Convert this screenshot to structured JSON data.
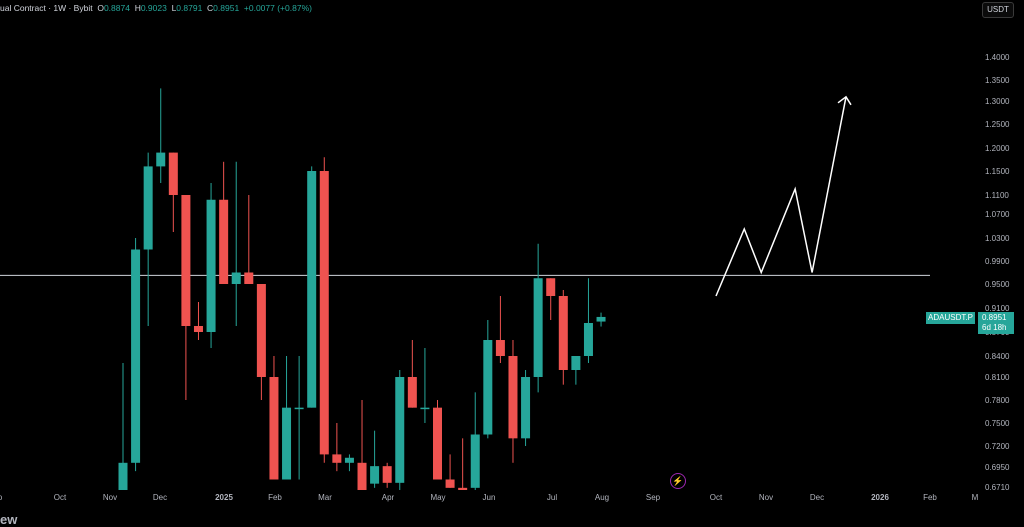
{
  "legend": {
    "title": "ual Contract · 1W · Bybit",
    "o_label": "O",
    "o": "0.8874",
    "h_label": "H",
    "h": "0.9023",
    "l_label": "L",
    "l": "0.8791",
    "c_label": "C",
    "c": "0.8951",
    "change": "+0.0077 (+0.87%)"
  },
  "currency_button": "USDT",
  "price_label": {
    "symbol": "ADAUSDT.P",
    "price": "0.8951",
    "countdown": "6d 18h"
  },
  "watermark": "ew",
  "colors": {
    "up": "#26a69a",
    "down": "#ef5350",
    "background": "#000000",
    "axis_text": "#b2b5be",
    "annotation": "#ffffff"
  },
  "chart_data": {
    "type": "candlestick",
    "y_ticks": [
      "1.4000",
      "1.3500",
      "1.3000",
      "1.2500",
      "1.2000",
      "1.1500",
      "1.1100",
      "1.0700",
      "1.0300",
      "0.9900",
      "0.9500",
      "0.9100",
      "0.8700",
      "0.8400",
      "0.8100",
      "0.7800",
      "0.7500",
      "0.7200",
      "0.6950",
      "0.6710"
    ],
    "x_ticks": [
      "p",
      "Oct",
      "Nov",
      "Dec",
      "2025",
      "Feb",
      "Mar",
      "Apr",
      "May",
      "Jun",
      "Jul",
      "Aug",
      "Sep",
      "Oct",
      "Nov",
      "Dec",
      "2026",
      "Feb",
      "M"
    ],
    "horizontal_line": 0.965,
    "candles": [
      {
        "o": 0.66,
        "h": 0.83,
        "l": 0.66,
        "c": 0.7
      },
      {
        "o": 0.7,
        "h": 1.03,
        "l": 0.69,
        "c": 1.01
      },
      {
        "o": 1.01,
        "h": 1.19,
        "l": 0.88,
        "c": 1.16
      },
      {
        "o": 1.16,
        "h": 1.33,
        "l": 1.13,
        "c": 1.19
      },
      {
        "o": 1.19,
        "h": 1.19,
        "l": 1.04,
        "c": 1.11
      },
      {
        "o": 1.11,
        "h": 1.11,
        "l": 0.78,
        "c": 0.88
      },
      {
        "o": 0.88,
        "h": 0.92,
        "l": 0.86,
        "c": 0.87
      },
      {
        "o": 0.87,
        "h": 1.13,
        "l": 0.85,
        "c": 1.1
      },
      {
        "o": 1.1,
        "h": 1.17,
        "l": 0.95,
        "c": 0.95
      },
      {
        "o": 0.95,
        "h": 1.17,
        "l": 0.88,
        "c": 0.97
      },
      {
        "o": 0.97,
        "h": 1.11,
        "l": 0.95,
        "c": 0.95
      },
      {
        "o": 0.95,
        "h": 0.95,
        "l": 0.78,
        "c": 0.81
      },
      {
        "o": 0.81,
        "h": 0.84,
        "l": 0.68,
        "c": 0.68
      },
      {
        "o": 0.68,
        "h": 0.84,
        "l": 0.68,
        "c": 0.77
      },
      {
        "o": 0.77,
        "h": 0.84,
        "l": 0.68,
        "c": 0.77
      },
      {
        "o": 0.77,
        "h": 1.16,
        "l": 0.77,
        "c": 1.15
      },
      {
        "o": 1.15,
        "h": 1.18,
        "l": 0.7,
        "c": 0.71
      },
      {
        "o": 0.71,
        "h": 0.75,
        "l": 0.69,
        "c": 0.7
      },
      {
        "o": 0.7,
        "h": 0.71,
        "l": 0.69,
        "c": 0.706
      },
      {
        "o": 0.7,
        "h": 0.78,
        "l": 0.66,
        "c": 0.666
      },
      {
        "o": 0.675,
        "h": 0.74,
        "l": 0.67,
        "c": 0.696
      },
      {
        "o": 0.696,
        "h": 0.7,
        "l": 0.67,
        "c": 0.676
      },
      {
        "o": 0.676,
        "h": 0.82,
        "l": 0.66,
        "c": 0.81
      },
      {
        "o": 0.81,
        "h": 0.86,
        "l": 0.77,
        "c": 0.77
      },
      {
        "o": 0.77,
        "h": 0.85,
        "l": 0.75,
        "c": 0.77
      },
      {
        "o": 0.77,
        "h": 0.78,
        "l": 0.68,
        "c": 0.68
      },
      {
        "o": 0.68,
        "h": 0.71,
        "l": 0.67,
        "c": 0.67
      },
      {
        "o": 0.67,
        "h": 0.73,
        "l": 0.66,
        "c": 0.666
      },
      {
        "o": 0.67,
        "h": 0.79,
        "l": 0.66,
        "c": 0.735
      },
      {
        "o": 0.735,
        "h": 0.89,
        "l": 0.73,
        "c": 0.86
      },
      {
        "o": 0.86,
        "h": 0.93,
        "l": 0.83,
        "c": 0.84
      },
      {
        "o": 0.84,
        "h": 0.86,
        "l": 0.7,
        "c": 0.73
      },
      {
        "o": 0.73,
        "h": 0.82,
        "l": 0.72,
        "c": 0.81
      },
      {
        "o": 0.81,
        "h": 1.02,
        "l": 0.79,
        "c": 0.96
      },
      {
        "o": 0.96,
        "h": 0.96,
        "l": 0.89,
        "c": 0.93
      },
      {
        "o": 0.93,
        "h": 0.94,
        "l": 0.8,
        "c": 0.82
      },
      {
        "o": 0.82,
        "h": 0.84,
        "l": 0.8,
        "c": 0.84
      },
      {
        "o": 0.84,
        "h": 0.96,
        "l": 0.83,
        "c": 0.885
      },
      {
        "o": 0.8874,
        "h": 0.9023,
        "l": 0.8791,
        "c": 0.8951
      }
    ],
    "projection_path": [
      [
        0.915,
        0.93
      ],
      [
        0.94,
        1.045
      ],
      [
        0.955,
        0.97
      ],
      [
        0.985,
        1.12
      ],
      [
        1.0,
        0.97
      ],
      [
        1.03,
        1.31
      ]
    ]
  }
}
